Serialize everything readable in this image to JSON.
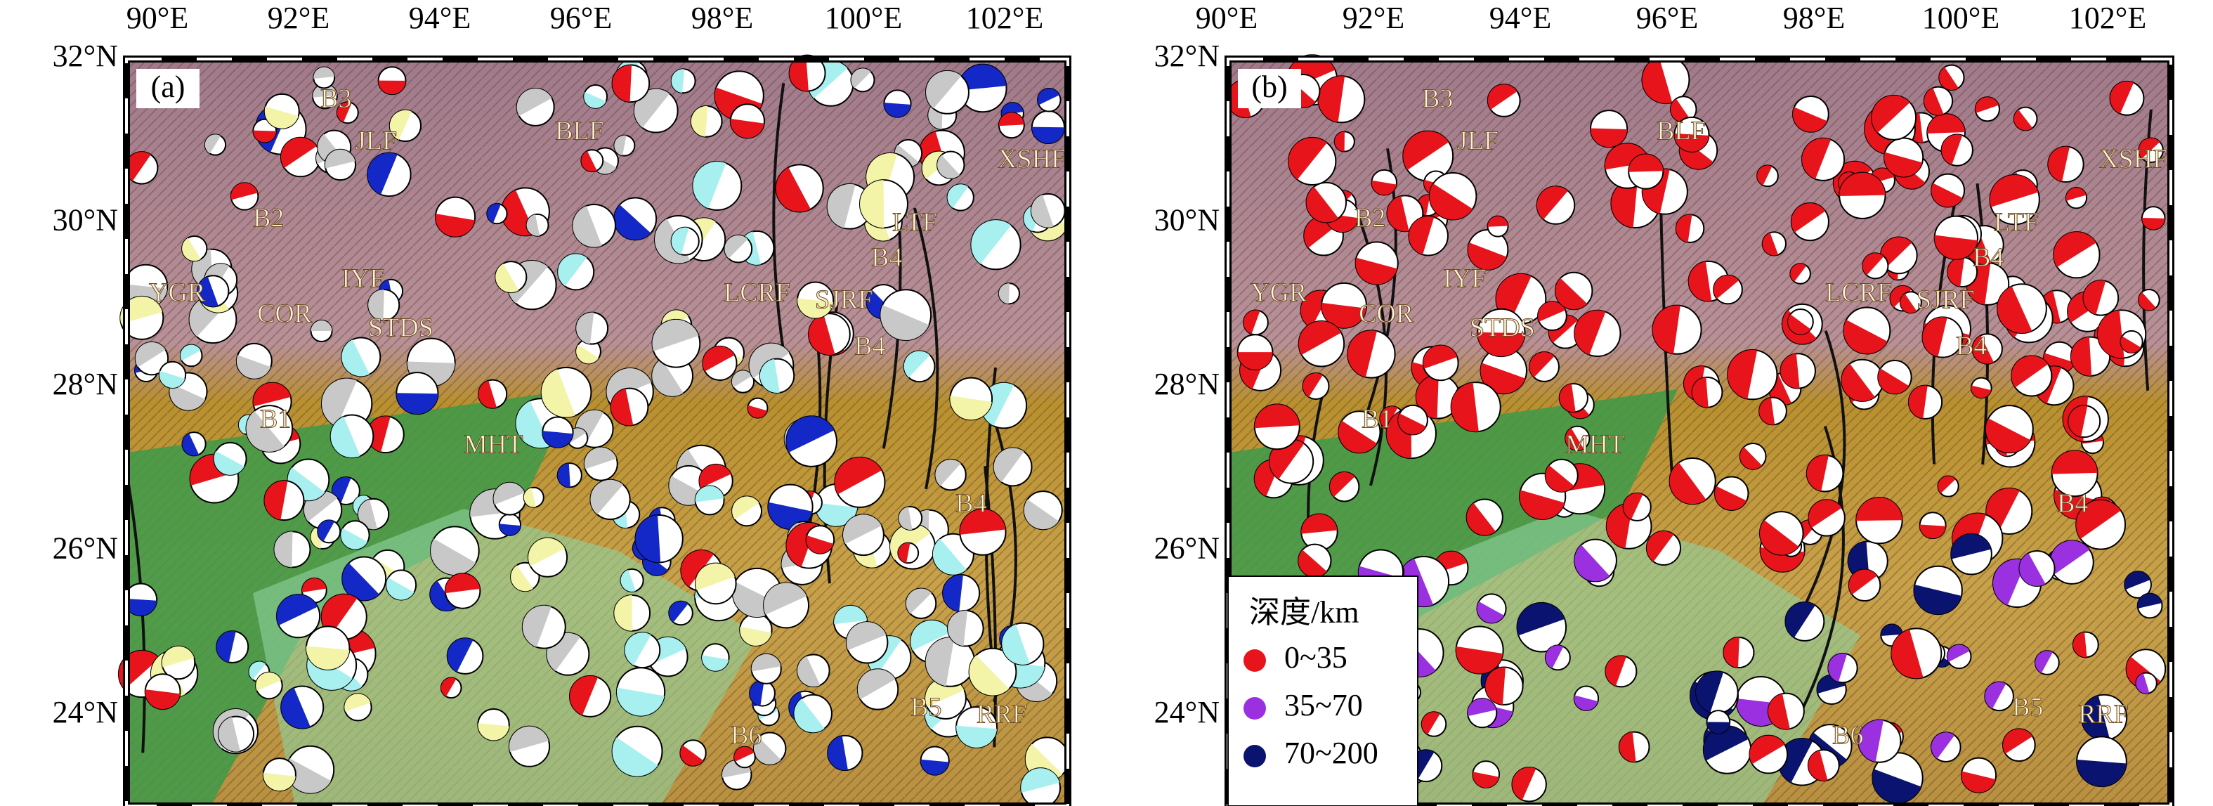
{
  "panels": [
    {
      "label": "(a)"
    },
    {
      "label": "(b)",
      "legend": {
        "title": "深度/km",
        "items": [
          {
            "label": "0~35",
            "color": "#e8141c"
          },
          {
            "label": "35~70",
            "color": "#9b30e0"
          },
          {
            "label": "70~200",
            "color": "#0a1470"
          }
        ]
      }
    }
  ],
  "lon_ticks": [
    "90°E",
    "92°E",
    "94°E",
    "96°E",
    "98°E",
    "100°E",
    "102°E"
  ],
  "lat_ticks": [
    "32°N",
    "30°N",
    "28°N",
    "26°N",
    "24°N"
  ],
  "map_labels": [
    "B3",
    "JLF",
    "BLF",
    "B2",
    "YGR",
    "COR",
    "IYF",
    "STDS",
    "B1",
    "MHT",
    "LCRF",
    "SJRF",
    "B4",
    "B4",
    "LTF",
    "XSHF",
    "B4",
    "B5",
    "B6",
    "RRF"
  ]
}
